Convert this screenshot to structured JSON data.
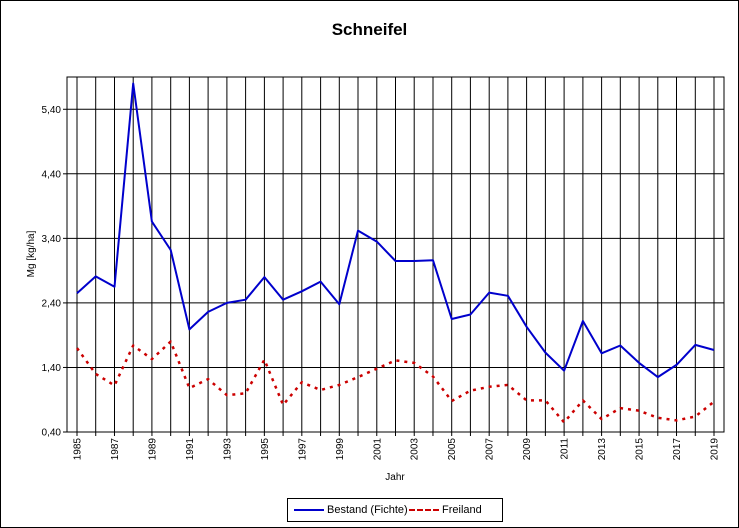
{
  "chart_data": {
    "type": "line",
    "title": "Schneifel",
    "xlabel": "Jahr",
    "ylabel": "Mg [kg/ha]",
    "ylim": [
      0.4,
      5.9
    ],
    "yticks": [
      "0,40",
      "1,40",
      "2,40",
      "3,40",
      "4,40",
      "5,40"
    ],
    "ytick_values": [
      0.4,
      1.4,
      2.4,
      3.4,
      4.4,
      5.4
    ],
    "x": [
      1985,
      1986,
      1987,
      1988,
      1989,
      1990,
      1991,
      1992,
      1993,
      1994,
      1995,
      1996,
      1997,
      1998,
      1999,
      2000,
      2001,
      2002,
      2003,
      2004,
      2005,
      2006,
      2007,
      2008,
      2009,
      2010,
      2011,
      2012,
      2013,
      2014,
      2015,
      2016,
      2017,
      2018,
      2019
    ],
    "xtick_labels": [
      "1985",
      "1987",
      "1989",
      "1991",
      "1993",
      "1995",
      "1997",
      "1999",
      "2001",
      "2003",
      "2005",
      "2007",
      "2009",
      "2011",
      "2013",
      "2015",
      "2017",
      "2019"
    ],
    "xtick_values": [
      1985,
      1987,
      1989,
      1991,
      1993,
      1995,
      1997,
      1999,
      2001,
      2003,
      2005,
      2007,
      2009,
      2011,
      2013,
      2015,
      2017,
      2019
    ],
    "grid": true,
    "legend_position": "bottom",
    "series": [
      {
        "name": "Bestand (Fichte)",
        "color": "#0000CC",
        "style": "solid",
        "values": [
          2.55,
          2.81,
          2.65,
          5.8,
          3.66,
          3.22,
          1.99,
          2.26,
          2.4,
          2.45,
          2.8,
          2.45,
          2.58,
          2.73,
          2.38,
          3.52,
          3.35,
          3.05,
          3.05,
          3.06,
          2.15,
          2.22,
          2.56,
          2.51,
          2.03,
          1.63,
          1.35,
          2.12,
          1.62,
          1.74,
          1.47,
          1.25,
          1.44,
          1.75,
          1.67
        ]
      },
      {
        "name": "Freiland",
        "color": "#CC0000",
        "style": "dashed",
        "values": [
          1.7,
          1.3,
          1.12,
          1.74,
          1.53,
          1.8,
          1.08,
          1.22,
          0.97,
          1.0,
          1.52,
          0.82,
          1.17,
          1.05,
          1.13,
          1.25,
          1.38,
          1.51,
          1.47,
          1.26,
          0.88,
          1.04,
          1.1,
          1.13,
          0.89,
          0.89,
          0.55,
          0.89,
          0.6,
          0.77,
          0.73,
          0.62,
          0.58,
          0.64,
          0.87
        ]
      }
    ]
  },
  "legend": {
    "bestand_label": "Bestand (Fichte)",
    "freiland_label": "Freiland"
  }
}
